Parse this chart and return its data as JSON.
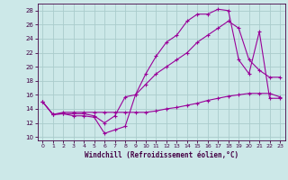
{
  "xlabel": "Windchill (Refroidissement éolien,°C)",
  "background_color": "#cce8e8",
  "grid_color": "#aacccc",
  "line_color": "#990099",
  "xlim": [
    -0.5,
    23.5
  ],
  "ylim": [
    9.5,
    29.0
  ],
  "yticks": [
    10,
    12,
    14,
    16,
    18,
    20,
    22,
    24,
    26,
    28
  ],
  "xticks": [
    0,
    1,
    2,
    3,
    4,
    5,
    6,
    7,
    8,
    9,
    10,
    11,
    12,
    13,
    14,
    15,
    16,
    17,
    18,
    19,
    20,
    21,
    22,
    23
  ],
  "line1_x": [
    0,
    1,
    2,
    3,
    4,
    5,
    6,
    7,
    8,
    9,
    10,
    11,
    12,
    13,
    14,
    15,
    16,
    17,
    18,
    19,
    20,
    21,
    22,
    23
  ],
  "line1_y": [
    15.0,
    13.2,
    13.3,
    13.0,
    13.0,
    12.8,
    10.5,
    11.0,
    11.5,
    16.0,
    19.0,
    21.5,
    23.5,
    24.5,
    26.5,
    27.5,
    27.5,
    28.2,
    28.0,
    21.0,
    19.0,
    25.0,
    15.5,
    15.5
  ],
  "line2_x": [
    0,
    1,
    2,
    3,
    4,
    5,
    6,
    7,
    8,
    9,
    10,
    11,
    12,
    13,
    14,
    15,
    16,
    17,
    18,
    19,
    20,
    21,
    22,
    23
  ],
  "line2_y": [
    15.0,
    13.2,
    13.3,
    13.3,
    13.3,
    13.0,
    12.0,
    13.0,
    15.7,
    16.0,
    17.5,
    19.0,
    20.0,
    21.0,
    22.0,
    23.5,
    24.5,
    25.5,
    26.5,
    25.5,
    21.0,
    19.5,
    18.5,
    18.5
  ],
  "line3_x": [
    0,
    1,
    2,
    3,
    4,
    5,
    6,
    7,
    8,
    9,
    10,
    11,
    12,
    13,
    14,
    15,
    16,
    17,
    18,
    19,
    20,
    21,
    22,
    23
  ],
  "line3_y": [
    15.0,
    13.2,
    13.5,
    13.5,
    13.5,
    13.5,
    13.5,
    13.5,
    13.5,
    13.5,
    13.5,
    13.7,
    14.0,
    14.2,
    14.5,
    14.8,
    15.2,
    15.5,
    15.8,
    16.0,
    16.2,
    16.2,
    16.2,
    15.7
  ]
}
